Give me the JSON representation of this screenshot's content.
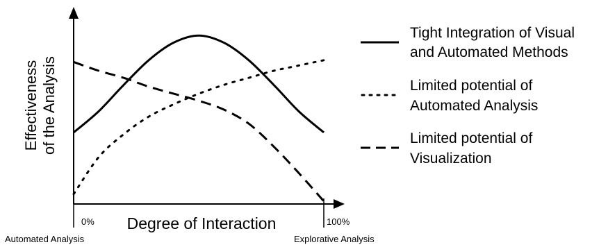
{
  "chart_data": {
    "type": "line",
    "title": "",
    "xlabel": "Degree of Interaction",
    "ylabel": [
      "Effectiveness",
      "of the Analysis"
    ],
    "x_ticks": [
      "0%",
      "100%"
    ],
    "x_end_labels": [
      "Automated Analysis",
      "Explorative Analysis"
    ],
    "xlim": [
      0,
      100
    ],
    "ylim": [
      0,
      100
    ],
    "grid": false,
    "legend_position": "right",
    "series": [
      {
        "name": [
          "Tight Integration of Visual",
          "and Automated Methods"
        ],
        "style": "solid",
        "x": [
          0,
          10,
          20,
          30,
          40,
          50,
          60,
          70,
          80,
          90,
          100
        ],
        "y": [
          39,
          51,
          66,
          80,
          90,
          94,
          90,
          80,
          66,
          51,
          39
        ]
      },
      {
        "name": [
          "Limited potential of",
          "Automated Analysis"
        ],
        "style": "dotted",
        "x": [
          0,
          10,
          20,
          30,
          40,
          50,
          60,
          70,
          80,
          90,
          100
        ],
        "y": [
          4,
          25,
          38,
          48,
          55,
          61,
          66,
          70,
          74,
          77,
          80
        ]
      },
      {
        "name": [
          "Limited potential of",
          "Visualization"
        ],
        "style": "dashed",
        "x": [
          0,
          10,
          20,
          30,
          40,
          50,
          60,
          70,
          80,
          90,
          100
        ],
        "y": [
          79,
          74,
          70,
          65,
          61,
          57,
          52,
          44,
          31,
          16,
          0
        ]
      }
    ]
  },
  "colors": {
    "line": "#000000",
    "background": "#ffffff"
  }
}
